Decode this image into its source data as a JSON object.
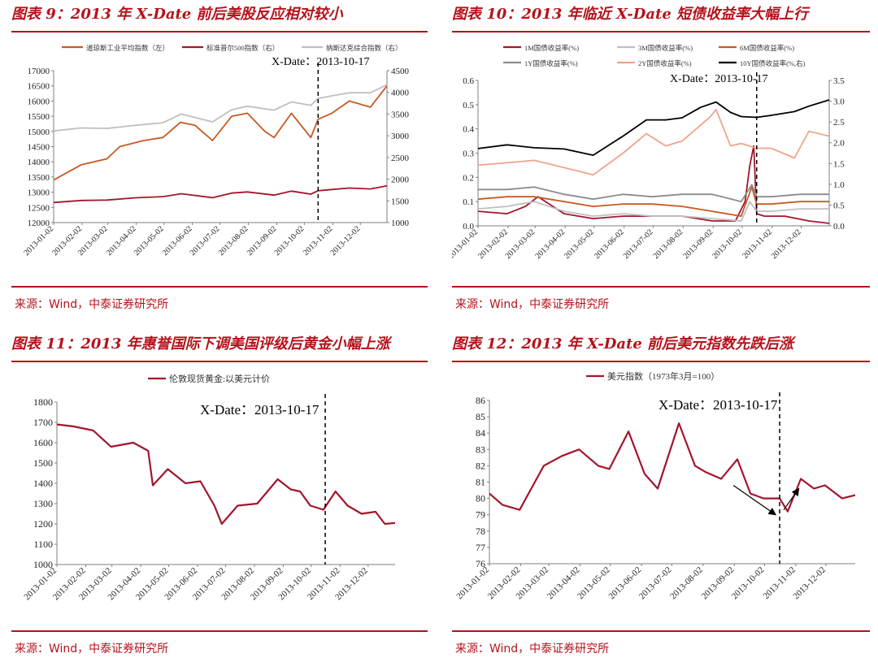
{
  "theme": {
    "title_color": "#b5121b"
  },
  "panels": [
    {
      "title": "图表 9：2013 年 X-Date 前后美股反应相对较小",
      "source": "来源：Wind，中泰证券研究所"
    },
    {
      "title": "图表 10：2013 年临近 X-Date 短债收益率大幅上行",
      "source": "来源：Wind，中泰证券研究所"
    },
    {
      "title": "图表 11：2013 年惠誉国际下调美国评级后黄金小幅上涨",
      "source": "来源：Wind，中泰证券研究所"
    },
    {
      "title": "图表 12：2013 年 X-Date 前后美元指数先跌后涨",
      "source": "来源：Wind，中泰证券研究所"
    }
  ],
  "chart_data": [
    {
      "type": "line",
      "annotation": "X-Date：2013-10-17",
      "xdate": "2013-10-17",
      "x_ticks": [
        "2013-01-02",
        "2013-02-02",
        "2013-03-02",
        "2013-04-02",
        "2013-05-02",
        "2013-06-02",
        "2013-07-02",
        "2013-08-02",
        "2013-09-02",
        "2013-10-02",
        "2013-11-02",
        "2013-12-02"
      ],
      "y_left": {
        "ticks": [
          "12000",
          "12500",
          "13000",
          "13500",
          "14000",
          "14500",
          "15000",
          "15500",
          "16000",
          "16500",
          "17000"
        ],
        "lim": [
          12000,
          17000
        ]
      },
      "y_right": {
        "ticks": [
          "1000",
          "1500",
          "2000",
          "2500",
          "3000",
          "3500",
          "4000",
          "4500"
        ],
        "lim": [
          1000,
          4500
        ]
      },
      "legend": "top",
      "series": [
        {
          "name": "道琼斯工业平均指数（左）",
          "axis": "left",
          "color": "#c65a23",
          "x": [
            "2013-01-02",
            "2013-02-01",
            "2013-03-01",
            "2013-03-15",
            "2013-04-10",
            "2013-05-01",
            "2013-05-20",
            "2013-06-05",
            "2013-06-24",
            "2013-07-15",
            "2013-08-01",
            "2013-08-20",
            "2013-08-30",
            "2013-09-18",
            "2013-10-09",
            "2013-10-17",
            "2013-11-01",
            "2013-11-20",
            "2013-12-13",
            "2013-12-31"
          ],
          "values": [
            13400,
            13900,
            14100,
            14500,
            14700,
            14800,
            15300,
            15200,
            14700,
            15500,
            15600,
            15000,
            14800,
            15600,
            14800,
            15400,
            15600,
            16000,
            15800,
            16500
          ]
        },
        {
          "name": "标准普尔500指数（右）",
          "axis": "right",
          "color": "#a3152d",
          "x": [
            "2013-01-02",
            "2013-02-01",
            "2013-03-01",
            "2013-04-01",
            "2013-05-01",
            "2013-05-21",
            "2013-06-24",
            "2013-07-15",
            "2013-08-01",
            "2013-08-30",
            "2013-09-18",
            "2013-10-09",
            "2013-10-17",
            "2013-11-01",
            "2013-11-20",
            "2013-12-13",
            "2013-12-31"
          ],
          "values": [
            1462,
            1510,
            1518,
            1570,
            1597,
            1665,
            1573,
            1680,
            1706,
            1633,
            1725,
            1656,
            1733,
            1762,
            1795,
            1775,
            1848
          ]
        },
        {
          "name": "纳斯达克综合指数（右）",
          "axis": "right",
          "color": "#bfbfbf",
          "x": [
            "2013-01-02",
            "2013-02-01",
            "2013-03-01",
            "2013-04-01",
            "2013-05-01",
            "2013-05-21",
            "2013-06-24",
            "2013-07-15",
            "2013-08-01",
            "2013-08-30",
            "2013-09-18",
            "2013-10-09",
            "2013-10-17",
            "2013-11-01",
            "2013-11-20",
            "2013-12-13",
            "2013-12-31"
          ],
          "values": [
            3112,
            3180,
            3170,
            3240,
            3300,
            3500,
            3320,
            3600,
            3680,
            3590,
            3780,
            3700,
            3860,
            3920,
            3990,
            3990,
            4177
          ]
        }
      ]
    },
    {
      "type": "line",
      "annotation": "X-Date：2013-10-17",
      "xdate": "2013-10-17",
      "x_ticks": [
        "2013-01-02",
        "2013-02-02",
        "2013-03-02",
        "2013-04-02",
        "2013-05-02",
        "2013-06-02",
        "2013-07-02",
        "2013-08-02",
        "2013-09-02",
        "2013-10-02",
        "2013-11-02",
        "2013-12-02"
      ],
      "y_left": {
        "ticks": [
          "0.0",
          "0.1",
          "0.2",
          "0.3",
          "0.4",
          "0.5",
          "0.6"
        ],
        "lim": [
          0,
          0.6
        ]
      },
      "y_right": {
        "ticks": [
          "0.0",
          "0.5",
          "1.0",
          "1.5",
          "2.0",
          "2.5",
          "3.0",
          "3.5"
        ],
        "lim": [
          0,
          3.5
        ]
      },
      "legend": "top",
      "series": [
        {
          "name": "1M国债收益率(%)",
          "axis": "left",
          "color": "#a3152d",
          "x": [
            "2013-01-02",
            "2013-02-01",
            "2013-02-20",
            "2013-03-05",
            "2013-04-01",
            "2013-05-01",
            "2013-06-01",
            "2013-07-01",
            "2013-08-01",
            "2013-09-01",
            "2013-09-25",
            "2013-10-05",
            "2013-10-10",
            "2013-10-14",
            "2013-10-17",
            "2013-10-25",
            "2013-11-15",
            "2013-12-10",
            "2013-12-31"
          ],
          "values": [
            0.06,
            0.05,
            0.08,
            0.12,
            0.05,
            0.03,
            0.04,
            0.04,
            0.04,
            0.02,
            0.02,
            0.1,
            0.25,
            0.33,
            0.05,
            0.04,
            0.04,
            0.02,
            0.01
          ]
        },
        {
          "name": "3M国债收益率(%)",
          "axis": "left",
          "color": "#bfbfbf",
          "x": [
            "2013-01-02",
            "2013-02-01",
            "2013-03-01",
            "2013-04-01",
            "2013-05-01",
            "2013-06-01",
            "2013-07-01",
            "2013-08-01",
            "2013-09-01",
            "2013-10-01",
            "2013-10-10",
            "2013-10-17",
            "2013-11-01",
            "2013-12-01",
            "2013-12-31"
          ],
          "values": [
            0.07,
            0.08,
            0.1,
            0.06,
            0.04,
            0.05,
            0.04,
            0.04,
            0.03,
            0.02,
            0.1,
            0.06,
            0.06,
            0.07,
            0.07
          ]
        },
        {
          "name": "6M国债收益率(%)",
          "axis": "left",
          "color": "#c65a23",
          "x": [
            "2013-01-02",
            "2013-02-01",
            "2013-03-01",
            "2013-04-01",
            "2013-05-01",
            "2013-06-01",
            "2013-07-01",
            "2013-08-01",
            "2013-09-01",
            "2013-10-01",
            "2013-10-12",
            "2013-10-17",
            "2013-11-01",
            "2013-12-01",
            "2013-12-31"
          ],
          "values": [
            0.11,
            0.12,
            0.12,
            0.1,
            0.08,
            0.09,
            0.09,
            0.08,
            0.06,
            0.04,
            0.16,
            0.09,
            0.09,
            0.1,
            0.1
          ]
        },
        {
          "name": "1Y国债收益率(%)",
          "axis": "left",
          "color": "#8c8c8c",
          "x": [
            "2013-01-02",
            "2013-02-01",
            "2013-03-01",
            "2013-04-01",
            "2013-05-01",
            "2013-06-01",
            "2013-07-01",
            "2013-08-01",
            "2013-09-01",
            "2013-10-01",
            "2013-10-12",
            "2013-10-17",
            "2013-11-01",
            "2013-12-01",
            "2013-12-31"
          ],
          "values": [
            0.15,
            0.15,
            0.16,
            0.13,
            0.11,
            0.13,
            0.12,
            0.13,
            0.13,
            0.1,
            0.17,
            0.12,
            0.12,
            0.13,
            0.13
          ]
        },
        {
          "name": "2Y国债收益率(%)",
          "axis": "left",
          "color": "#f0a38a",
          "x": [
            "2013-01-02",
            "2013-02-01",
            "2013-03-01",
            "2013-04-01",
            "2013-05-01",
            "2013-06-01",
            "2013-06-25",
            "2013-07-15",
            "2013-08-01",
            "2013-08-30",
            "2013-09-05",
            "2013-09-20",
            "2013-10-01",
            "2013-10-17",
            "2013-11-01",
            "2013-11-25",
            "2013-12-10",
            "2013-12-31"
          ],
          "values": [
            0.25,
            0.26,
            0.27,
            0.24,
            0.21,
            0.3,
            0.38,
            0.33,
            0.35,
            0.45,
            0.48,
            0.33,
            0.34,
            0.32,
            0.32,
            0.28,
            0.39,
            0.37
          ]
        },
        {
          "name": "10Y国债收益率(%,右)",
          "axis": "right",
          "color": "#000000",
          "x": [
            "2013-01-02",
            "2013-02-01",
            "2013-03-01",
            "2013-04-01",
            "2013-05-01",
            "2013-06-01",
            "2013-06-25",
            "2013-07-15",
            "2013-08-01",
            "2013-08-20",
            "2013-09-05",
            "2013-09-20",
            "2013-10-01",
            "2013-10-17",
            "2013-11-01",
            "2013-11-25",
            "2013-12-10",
            "2013-12-31"
          ],
          "values": [
            1.86,
            1.95,
            1.88,
            1.85,
            1.7,
            2.16,
            2.55,
            2.55,
            2.6,
            2.85,
            2.98,
            2.73,
            2.63,
            2.61,
            2.66,
            2.75,
            2.88,
            3.03
          ]
        }
      ]
    },
    {
      "type": "line",
      "annotation": "X-Date：2013-10-17",
      "xdate": "2013-10-17",
      "x_ticks": [
        "2013-01-02",
        "2013-02-02",
        "2013-03-02",
        "2013-04-02",
        "2013-05-02",
        "2013-06-02",
        "2013-07-02",
        "2013-08-02",
        "2013-09-02",
        "2013-10-02",
        "2013-11-02",
        "2013-12-02"
      ],
      "y_left": {
        "ticks": [
          "1000",
          "1100",
          "1200",
          "1300",
          "1400",
          "1500",
          "1600",
          "1700",
          "1800"
        ],
        "lim": [
          1000,
          1800
        ]
      },
      "legend": "top",
      "series": [
        {
          "name": "伦敦现货黄金:以美元计价",
          "axis": "left",
          "color": "#a3152d",
          "x": [
            "2013-01-02",
            "2013-01-20",
            "2013-02-10",
            "2013-03-01",
            "2013-03-25",
            "2013-04-10",
            "2013-04-15",
            "2013-05-01",
            "2013-05-20",
            "2013-06-05",
            "2013-06-20",
            "2013-06-28",
            "2013-07-15",
            "2013-08-05",
            "2013-08-27",
            "2013-09-10",
            "2013-09-20",
            "2013-10-01",
            "2013-10-15",
            "2013-10-28",
            "2013-11-10",
            "2013-11-25",
            "2013-12-10",
            "2013-12-20",
            "2013-12-31"
          ],
          "values": [
            1690,
            1680,
            1660,
            1580,
            1600,
            1560,
            1390,
            1470,
            1400,
            1410,
            1290,
            1200,
            1290,
            1300,
            1420,
            1370,
            1360,
            1290,
            1270,
            1360,
            1290,
            1250,
            1260,
            1200,
            1205
          ]
        }
      ]
    },
    {
      "type": "line",
      "annotation": "X-Date：2013-10-17",
      "xdate": "2013-10-17",
      "x_ticks": [
        "2013-01-02",
        "2013-02-02",
        "2013-03-02",
        "2013-04-02",
        "2013-05-02",
        "2013-06-02",
        "2013-07-02",
        "2013-08-02",
        "2013-09-02",
        "2013-10-02",
        "2013-11-02",
        "2013-12-02"
      ],
      "y_left": {
        "ticks": [
          "76",
          "77",
          "78",
          "79",
          "80",
          "81",
          "82",
          "83",
          "84",
          "85",
          "86"
        ],
        "lim": [
          76,
          86
        ]
      },
      "legend": "top",
      "series": [
        {
          "name": "美元指数（1973年3月=100）",
          "axis": "left",
          "color": "#a3152d",
          "x": [
            "2013-01-02",
            "2013-01-15",
            "2013-02-01",
            "2013-02-25",
            "2013-03-15",
            "2013-04-01",
            "2013-04-20",
            "2013-05-01",
            "2013-05-20",
            "2013-06-05",
            "2013-06-18",
            "2013-07-09",
            "2013-07-25",
            "2013-08-05",
            "2013-08-20",
            "2013-09-05",
            "2013-09-18",
            "2013-10-01",
            "2013-10-17",
            "2013-10-25",
            "2013-11-07",
            "2013-11-20",
            "2013-12-01",
            "2013-12-18",
            "2013-12-31"
          ],
          "values": [
            80.3,
            79.6,
            79.3,
            82.0,
            82.6,
            83.0,
            82.0,
            81.8,
            84.1,
            81.5,
            80.6,
            84.6,
            82.0,
            81.6,
            81.2,
            82.4,
            80.3,
            80.0,
            80.0,
            79.2,
            81.2,
            80.6,
            80.8,
            80.0,
            80.2
          ]
        }
      ],
      "arrows": [
        {
          "from": [
            "2013-09-01",
            80.8
          ],
          "to": [
            "2013-10-13",
            79.0
          ]
        },
        {
          "from": [
            "2013-10-21",
            79.3
          ],
          "to": [
            "2013-11-05",
            80.6
          ]
        }
      ]
    }
  ]
}
